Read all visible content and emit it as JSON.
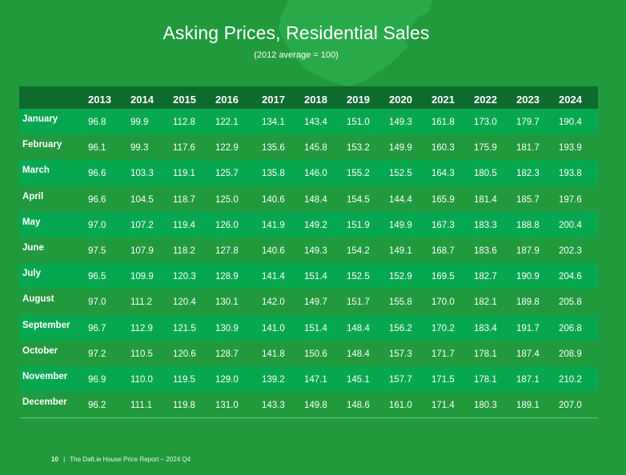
{
  "report": {
    "title": "Asking Prices, Residential Sales",
    "subtitle": "(2012 average = 100)"
  },
  "table": {
    "years": [
      "2013",
      "2014",
      "2015",
      "2016",
      "2017",
      "2018",
      "2019",
      "2020",
      "2021",
      "2022",
      "2023",
      "2024"
    ],
    "rows": [
      {
        "month": "January",
        "values": [
          "96.8",
          "99.9",
          "112.8",
          "122.1",
          "134.1",
          "143.4",
          "151.0",
          "149.3",
          "161.8",
          "173.0",
          "179.7",
          "190.4"
        ]
      },
      {
        "month": "February",
        "values": [
          "96.1",
          "99.3",
          "117.6",
          "122.9",
          "135.6",
          "145.8",
          "153.2",
          "149.9",
          "160.3",
          "175.9",
          "181.7",
          "193.9"
        ]
      },
      {
        "month": "March",
        "values": [
          "96.6",
          "103.3",
          "119.1",
          "125.7",
          "135.8",
          "146.0",
          "155.2",
          "152.5",
          "164.3",
          "180.5",
          "182.3",
          "193.8"
        ]
      },
      {
        "month": "April",
        "values": [
          "96.6",
          "104.5",
          "118.7",
          "125.0",
          "140.6",
          "148.4",
          "154.5",
          "144.4",
          "165.9",
          "181.4",
          "185.7",
          "197.6"
        ]
      },
      {
        "month": "May",
        "values": [
          "97.0",
          "107.2",
          "119.4",
          "126.0",
          "141.9",
          "149.2",
          "151.9",
          "149.9",
          "167.3",
          "183.3",
          "188.8",
          "200.4"
        ]
      },
      {
        "month": "June",
        "values": [
          "97.5",
          "107.9",
          "118.2",
          "127.8",
          "140.6",
          "149.3",
          "154.2",
          "149.1",
          "168.7",
          "183.6",
          "187.9",
          "202.3"
        ]
      },
      {
        "month": "July",
        "values": [
          "96.5",
          "109.9",
          "120.3",
          "128.9",
          "141.4",
          "151.4",
          "152.5",
          "152.9",
          "169.5",
          "182.7",
          "190.9",
          "204.6"
        ]
      },
      {
        "month": "August",
        "values": [
          "97.0",
          "111.2",
          "120.4",
          "130.1",
          "142.0",
          "149.7",
          "151.7",
          "155.8",
          "170.0",
          "182.1",
          "189.8",
          "205.8"
        ]
      },
      {
        "month": "September",
        "values": [
          "96.7",
          "112.9",
          "121.5",
          "130.9",
          "141.0",
          "151.4",
          "148.4",
          "156.2",
          "170.2",
          "183.4",
          "191.7",
          "206.8"
        ]
      },
      {
        "month": "October",
        "values": [
          "97.2",
          "110.5",
          "120.6",
          "128.7",
          "141.8",
          "150.6",
          "148.4",
          "157.3",
          "171.7",
          "178.1",
          "187.4",
          "208.9"
        ]
      },
      {
        "month": "November",
        "values": [
          "96.9",
          "110.0",
          "119.5",
          "129.0",
          "139.2",
          "147.1",
          "145.1",
          "157.7",
          "171.5",
          "178.1",
          "187.1",
          "210.2"
        ]
      },
      {
        "month": "December",
        "values": [
          "96.2",
          "111.1",
          "119.8",
          "131.0",
          "143.3",
          "149.8",
          "148.6",
          "161.0",
          "171.4",
          "180.3",
          "189.1",
          "207.0"
        ]
      }
    ]
  },
  "footer": {
    "page_number": "10",
    "separator": "|",
    "report_name": "The Daft.ie House Price Report – 2024 Q4"
  },
  "colors": {
    "background": "#209a3d",
    "header_row": "#0e6b2e",
    "alt_row": "#07a74f",
    "map_shape": "#2bad4c"
  }
}
